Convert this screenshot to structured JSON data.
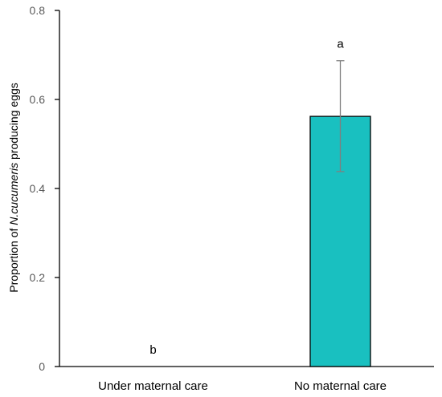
{
  "chart_data": {
    "type": "bar",
    "categories": [
      "Under maternal care",
      "No maternal care"
    ],
    "values": [
      0,
      0.562
    ],
    "error_bars": [
      {
        "lower": 0,
        "upper": 0
      },
      {
        "lower": 0.438,
        "upper": 0.687
      }
    ],
    "significance_letters": [
      "b",
      "a"
    ],
    "ylabel": {
      "prefix": "Proportion of ",
      "species": "N.cucumeris",
      "suffix": " producing eggs"
    },
    "ylim": [
      0,
      0.8
    ],
    "yticks": [
      0,
      0.2,
      0.4,
      0.6,
      0.8
    ],
    "ytick_labels": [
      "0",
      "0.2",
      "0.4",
      "0.6",
      "0.8"
    ],
    "grid": false,
    "bar_color": "#19c0c0",
    "bar_edge_color": "#000000",
    "error_bar_color": "#7f7f7f"
  }
}
